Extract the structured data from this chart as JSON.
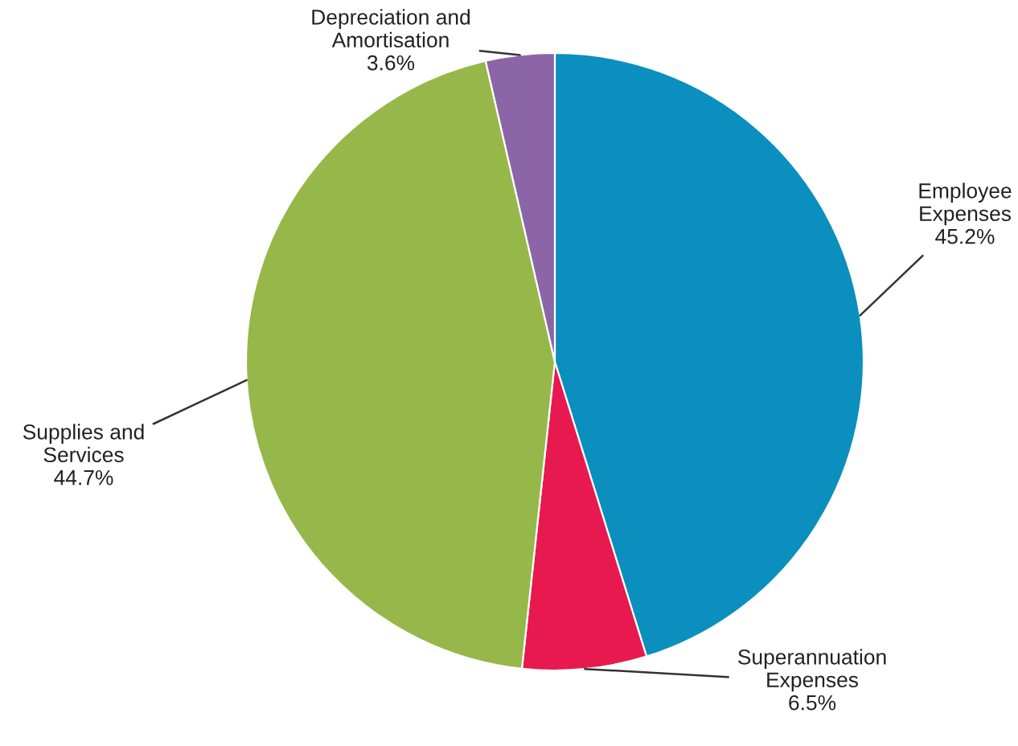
{
  "chart_data": {
    "type": "pie",
    "categories": [
      "Employee Expenses",
      "Superannuation Expenses",
      "Supplies and Services",
      "Depreciation and Amortisation"
    ],
    "values": [
      45.2,
      6.5,
      44.7,
      3.6
    ],
    "colors": [
      "#0a8fbf",
      "#e8194f",
      "#96b84a",
      "#8c64a8"
    ],
    "value_labels": [
      "45.2%",
      "6.5%",
      "44.7%",
      "3.6%"
    ],
    "legend": false
  }
}
